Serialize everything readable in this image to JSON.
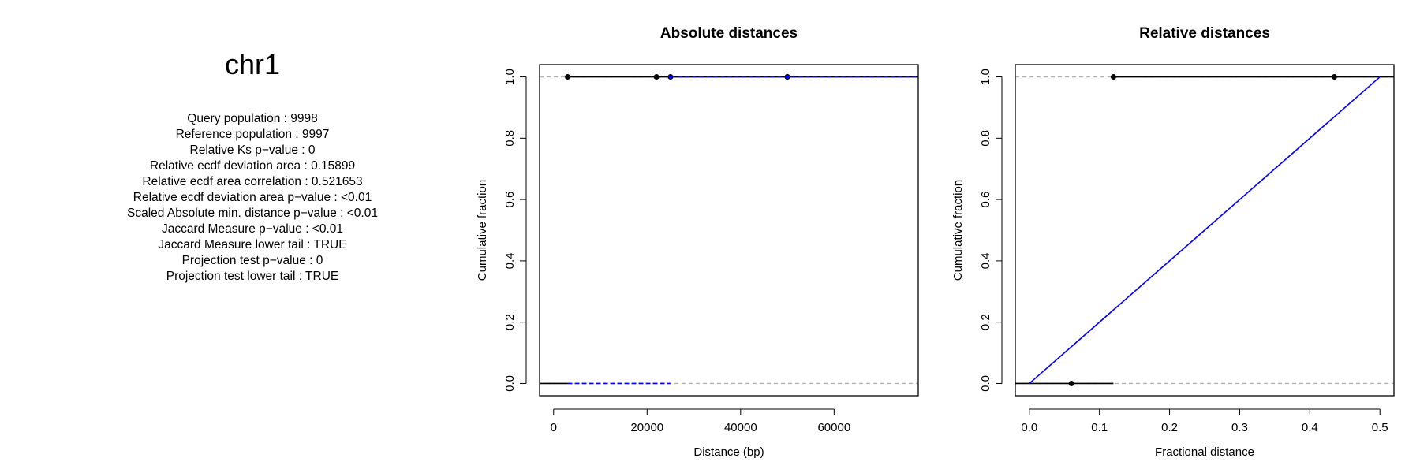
{
  "stats": {
    "chromosome": "chr1",
    "lines": [
      "Query population : 9998",
      "Reference population : 9997",
      "Relative Ks p−value : 0",
      "Relative ecdf deviation area : 0.15899",
      "Relative ecdf area correlation : 0.521653",
      "Relative ecdf deviation area p−value : <0.01",
      "Scaled Absolute min. distance p−value : <0.01",
      "Jaccard Measure p−value : <0.01",
      "Jaccard Measure lower tail : TRUE",
      "Projection test p−value : 0",
      "Projection test lower tail : TRUE"
    ]
  },
  "chart_data": [
    {
      "type": "line",
      "title": "Absolute distances",
      "xlabel": "Distance (bp)",
      "ylabel": "Cumulative fraction",
      "xlim": [
        -3000,
        78000
      ],
      "ylim": [
        -0.04,
        1.04
      ],
      "xticks": [
        0,
        20000,
        40000,
        60000
      ],
      "xtick_labels": [
        "0",
        "20000",
        "40000",
        "60000"
      ],
      "yticks": [
        0.0,
        0.2,
        0.4,
        0.6,
        0.8,
        1.0
      ],
      "ytick_labels": [
        "0.0",
        "0.2",
        "0.4",
        "0.6",
        "0.8",
        "1.0"
      ],
      "reference_lines": [
        0,
        1
      ],
      "reference_line_color": "#b3b3b3",
      "series": [
        {
          "color": "#000000",
          "steps": [
            {
              "x1": -3000,
              "x2": 3000,
              "y": 0
            },
            {
              "x1": 3000,
              "x2": 22000,
              "y": 1
            },
            {
              "x1": 22000,
              "x2": 50000,
              "y": 1
            },
            {
              "x1": 50000,
              "x2": 78000,
              "y": 1
            }
          ],
          "points": [
            {
              "x": 3000,
              "y": 1
            },
            {
              "x": 22000,
              "y": 1
            },
            {
              "x": 50000,
              "y": 1
            }
          ]
        },
        {
          "color": "#0000ff",
          "steps": [
            {
              "x1": 3000,
              "x2": 25000,
              "y": 0
            },
            {
              "x1": 25000,
              "x2": 78000,
              "y": 1
            }
          ],
          "points": [
            {
              "x": 25000,
              "y": 1
            },
            {
              "x": 50000,
              "y": 1
            }
          ]
        }
      ]
    },
    {
      "type": "line",
      "title": "Relative distances",
      "xlabel": "Fractional distance",
      "ylabel": "Cumulative fraction",
      "xlim": [
        -0.02,
        0.52
      ],
      "ylim": [
        -0.04,
        1.04
      ],
      "xticks": [
        0.0,
        0.1,
        0.2,
        0.3,
        0.4,
        0.5
      ],
      "xtick_labels": [
        "0.0",
        "0.1",
        "0.2",
        "0.3",
        "0.4",
        "0.5"
      ],
      "yticks": [
        0.0,
        0.2,
        0.4,
        0.6,
        0.8,
        1.0
      ],
      "ytick_labels": [
        "0.0",
        "0.2",
        "0.4",
        "0.6",
        "0.8",
        "1.0"
      ],
      "reference_lines": [
        0,
        1
      ],
      "reference_line_color": "#b3b3b3",
      "series": [
        {
          "color": "#000000",
          "steps": [
            {
              "x1": -0.02,
              "x2": 0.06,
              "y": 0
            },
            {
              "x1": 0.06,
              "x2": 0.12,
              "y": 0
            },
            {
              "x1": 0.12,
              "x2": 0.435,
              "y": 1
            },
            {
              "x1": 0.435,
              "x2": 0.52,
              "y": 1
            }
          ],
          "points": [
            {
              "x": 0.06,
              "y": 0
            },
            {
              "x": 0.12,
              "y": 1
            },
            {
              "x": 0.435,
              "y": 1
            }
          ]
        },
        {
          "color": "#0000ff",
          "line": [
            {
              "x": 0.0,
              "y": 0
            },
            {
              "x": 0.5,
              "y": 1
            }
          ],
          "points": []
        }
      ]
    }
  ]
}
